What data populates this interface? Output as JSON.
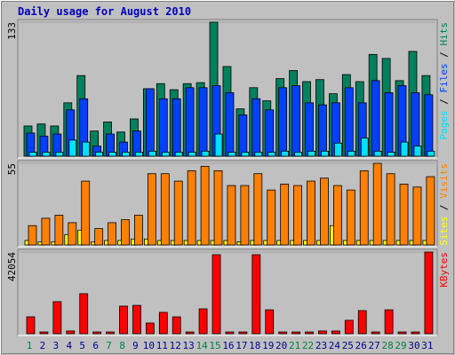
{
  "title": "Daily usage for August 2010",
  "chart_data": [
    {
      "type": "bar",
      "ylim": [
        0,
        133
      ],
      "yticks": [
        133
      ],
      "series": [
        {
          "name": "Hits",
          "color": "#00805c",
          "values": [
            30,
            32,
            30,
            53,
            80,
            25,
            34,
            24,
            37,
            67,
            72,
            66,
            72,
            73,
            133,
            89,
            47,
            68,
            55,
            77,
            85,
            74,
            76,
            62,
            81,
            74,
            101,
            97,
            75,
            104,
            80
          ]
        },
        {
          "name": "Files",
          "color": "#0040ff",
          "values": [
            23,
            20,
            22,
            46,
            57,
            10,
            22,
            14,
            25,
            67,
            57,
            57,
            68,
            68,
            70,
            63,
            41,
            57,
            46,
            68,
            70,
            53,
            51,
            53,
            68,
            53,
            75,
            63,
            70,
            63,
            61
          ]
        },
        {
          "name": "Pages",
          "color": "#00e0ff",
          "values": [
            4,
            4,
            4,
            16,
            14,
            4,
            4,
            4,
            4,
            5,
            4,
            4,
            4,
            5,
            22,
            4,
            4,
            4,
            4,
            5,
            4,
            5,
            5,
            13,
            5,
            18,
            5,
            4,
            14,
            10,
            5
          ]
        }
      ]
    },
    {
      "type": "bar",
      "ylim": [
        0,
        55
      ],
      "yticks": [
        55
      ],
      "series": [
        {
          "name": "Sites",
          "color": "#ffff00",
          "values": [
            3,
            2,
            2,
            7,
            10,
            2,
            3,
            3,
            4,
            4,
            3,
            3,
            3,
            3,
            3,
            3,
            2,
            3,
            3,
            3,
            3,
            3,
            3,
            13,
            3,
            3,
            3,
            3,
            3,
            3,
            3
          ]
        },
        {
          "name": "Visits",
          "color": "#ff8000",
          "values": [
            13,
            18,
            20,
            15,
            43,
            11,
            15,
            17,
            20,
            48,
            48,
            43,
            50,
            53,
            50,
            40,
            40,
            48,
            37,
            41,
            40,
            43,
            45,
            40,
            37,
            50,
            55,
            48,
            41,
            39,
            46
          ]
        }
      ]
    },
    {
      "type": "bar",
      "ylim": [
        0,
        42054
      ],
      "yticks": [
        42054
      ],
      "categories": [
        "1",
        "2",
        "3",
        "4",
        "5",
        "6",
        "7",
        "8",
        "9",
        "10",
        "11",
        "12",
        "13",
        "14",
        "15",
        "16",
        "17",
        "18",
        "19",
        "20",
        "21",
        "22",
        "23",
        "24",
        "25",
        "26",
        "27",
        "28",
        "29",
        "30",
        "31"
      ],
      "category_colors": [
        "#008040",
        "#00008b",
        "#00008b",
        "#00008b",
        "#00008b",
        "#00008b",
        "#008040",
        "#008040",
        "#00008b",
        "#00008b",
        "#00008b",
        "#00008b",
        "#00008b",
        "#008040",
        "#008040",
        "#00008b",
        "#00008b",
        "#00008b",
        "#00008b",
        "#00008b",
        "#008040",
        "#008040",
        "#00008b",
        "#00008b",
        "#00008b",
        "#00008b",
        "#00008b",
        "#008040",
        "#008040",
        "#00008b",
        "#00008b"
      ],
      "series": [
        {
          "name": "KBytes",
          "color": "#ff0000",
          "values": [
            8700,
            900,
            16500,
            1400,
            20600,
            900,
            900,
            14200,
            14600,
            5500,
            11000,
            8700,
            900,
            12800,
            40700,
            900,
            900,
            40700,
            12300,
            900,
            900,
            900,
            1400,
            1400,
            6900,
            11900,
            900,
            12300,
            900,
            900,
            42054
          ]
        }
      ]
    }
  ]
}
